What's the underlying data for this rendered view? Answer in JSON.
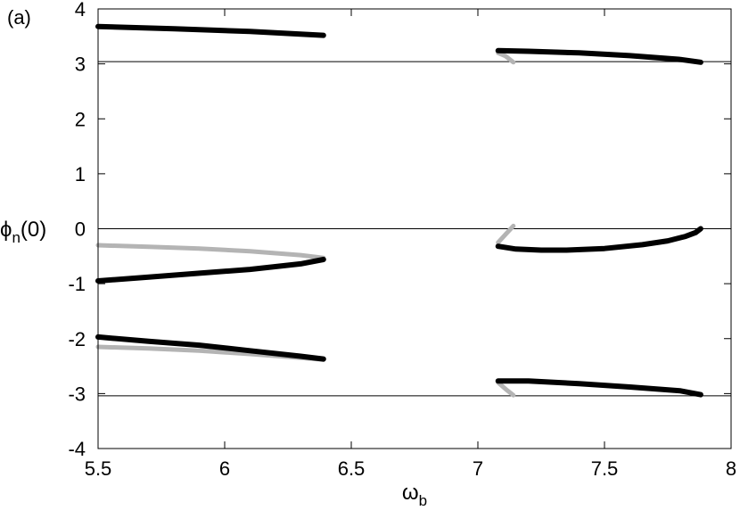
{
  "chart_data": {
    "type": "line",
    "panel_label": "(a)",
    "xlabel": {
      "main": "ω",
      "sub": "b"
    },
    "ylabel": {
      "main": "ϕ",
      "sub": "n",
      "rest": "(0)"
    },
    "xlim": [
      5.5,
      8
    ],
    "ylim": [
      -4,
      4
    ],
    "xticks": [
      5.5,
      6,
      6.5,
      7,
      7.5,
      8
    ],
    "yticks": [
      -4,
      -3,
      -2,
      -1,
      0,
      1,
      2,
      3,
      4
    ],
    "x_tick_labels": [
      "5.5",
      "6",
      "6.5",
      "7",
      "7.5",
      "8"
    ],
    "y_tick_labels": [
      "-4",
      "-3",
      "-2",
      "-1",
      "0",
      "1",
      "2",
      "3",
      "4"
    ],
    "reference_lines_y": [
      3.04,
      0,
      -3.04
    ],
    "colors": {
      "stable": "#000000",
      "unstable": "#b4b4b4",
      "reference": "#000000"
    },
    "series": [
      {
        "style": "unstable",
        "points": [
          [
            5.5,
            -0.3
          ],
          [
            5.7,
            -0.33
          ],
          [
            5.9,
            -0.36
          ],
          [
            6.1,
            -0.41
          ],
          [
            6.3,
            -0.48
          ],
          [
            6.39,
            -0.53
          ]
        ]
      },
      {
        "style": "unstable",
        "points": [
          [
            5.5,
            -2.15
          ],
          [
            5.7,
            -2.18
          ],
          [
            5.9,
            -2.22
          ],
          [
            6.1,
            -2.28
          ],
          [
            6.3,
            -2.35
          ],
          [
            6.39,
            -2.38
          ]
        ]
      },
      {
        "style": "unstable",
        "points": [
          [
            7.08,
            3.2
          ],
          [
            7.11,
            3.14
          ],
          [
            7.14,
            3.03
          ]
        ]
      },
      {
        "style": "unstable",
        "points": [
          [
            7.14,
            0.05
          ],
          [
            7.11,
            -0.1
          ],
          [
            7.08,
            -0.25
          ]
        ]
      },
      {
        "style": "unstable",
        "points": [
          [
            7.08,
            -2.8
          ],
          [
            7.11,
            -2.92
          ],
          [
            7.14,
            -3.03
          ]
        ]
      },
      {
        "style": "stable",
        "points": [
          [
            5.5,
            3.68
          ],
          [
            5.8,
            3.64
          ],
          [
            6.1,
            3.59
          ],
          [
            6.39,
            3.52
          ]
        ]
      },
      {
        "style": "stable",
        "points": [
          [
            5.5,
            -0.95
          ],
          [
            5.7,
            -0.88
          ],
          [
            5.9,
            -0.81
          ],
          [
            6.1,
            -0.74
          ],
          [
            6.3,
            -0.64
          ],
          [
            6.39,
            -0.56
          ]
        ]
      },
      {
        "style": "stable",
        "points": [
          [
            5.5,
            -1.97
          ],
          [
            5.7,
            -2.05
          ],
          [
            5.9,
            -2.12
          ],
          [
            6.1,
            -2.22
          ],
          [
            6.3,
            -2.32
          ],
          [
            6.39,
            -2.37
          ]
        ]
      },
      {
        "style": "stable",
        "points": [
          [
            7.08,
            3.24
          ],
          [
            7.2,
            3.23
          ],
          [
            7.4,
            3.2
          ],
          [
            7.6,
            3.15
          ],
          [
            7.8,
            3.08
          ],
          [
            7.88,
            3.03
          ]
        ]
      },
      {
        "style": "stable",
        "points": [
          [
            7.08,
            -0.32
          ],
          [
            7.15,
            -0.37
          ],
          [
            7.25,
            -0.39
          ],
          [
            7.35,
            -0.39
          ],
          [
            7.5,
            -0.36
          ],
          [
            7.65,
            -0.29
          ],
          [
            7.75,
            -0.22
          ],
          [
            7.82,
            -0.14
          ],
          [
            7.86,
            -0.07
          ],
          [
            7.88,
            0.0
          ]
        ]
      },
      {
        "style": "stable",
        "points": [
          [
            7.08,
            -2.77
          ],
          [
            7.2,
            -2.77
          ],
          [
            7.4,
            -2.82
          ],
          [
            7.6,
            -2.88
          ],
          [
            7.8,
            -2.95
          ],
          [
            7.88,
            -3.02
          ]
        ]
      }
    ]
  }
}
